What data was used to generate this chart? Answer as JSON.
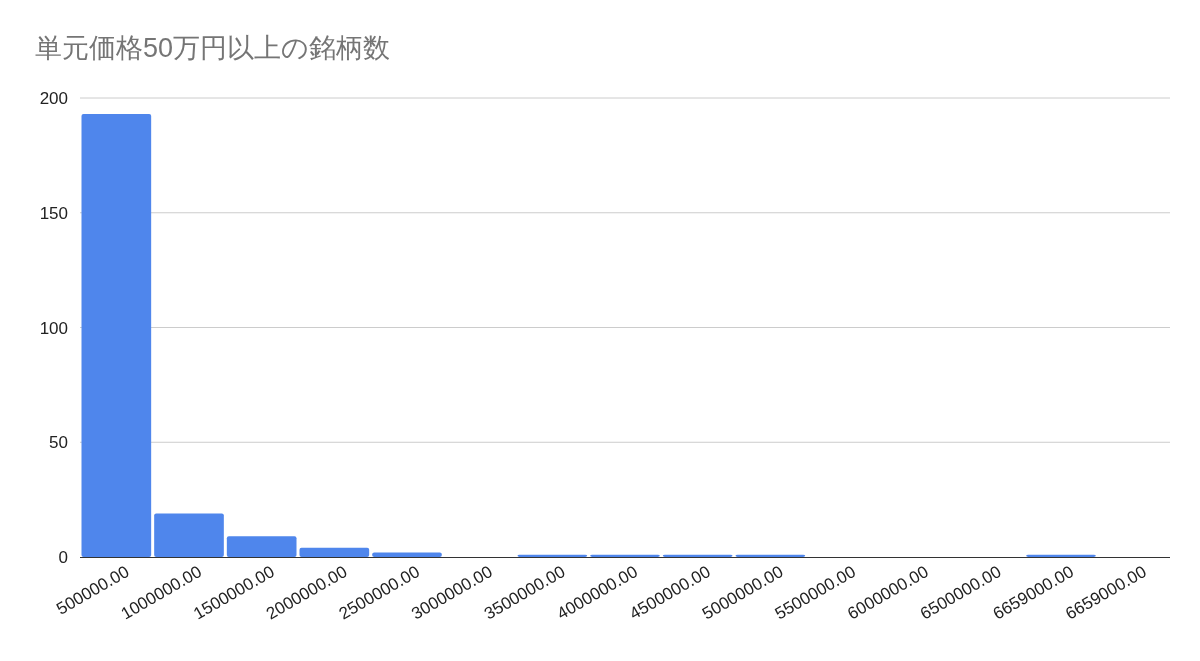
{
  "chart_data": {
    "type": "bar",
    "title": "単元価格50万円以上の銘柄数",
    "categories": [
      "500000.00",
      "1000000.00",
      "1500000.00",
      "2000000.00",
      "2500000.00",
      "3000000.00",
      "3500000.00",
      "4000000.00",
      "4500000.00",
      "5000000.00",
      "5500000.00",
      "6000000.00",
      "6500000.00",
      "6659000.00",
      "6659000.00"
    ],
    "values": [
      193,
      19,
      9,
      4,
      2,
      0,
      1,
      1,
      1,
      1,
      0,
      0,
      0,
      1,
      null
    ],
    "color": "#4f86ec",
    "ylim": [
      0,
      200
    ],
    "yticks": [
      0,
      50,
      100,
      150,
      200
    ],
    "grid": "y"
  }
}
